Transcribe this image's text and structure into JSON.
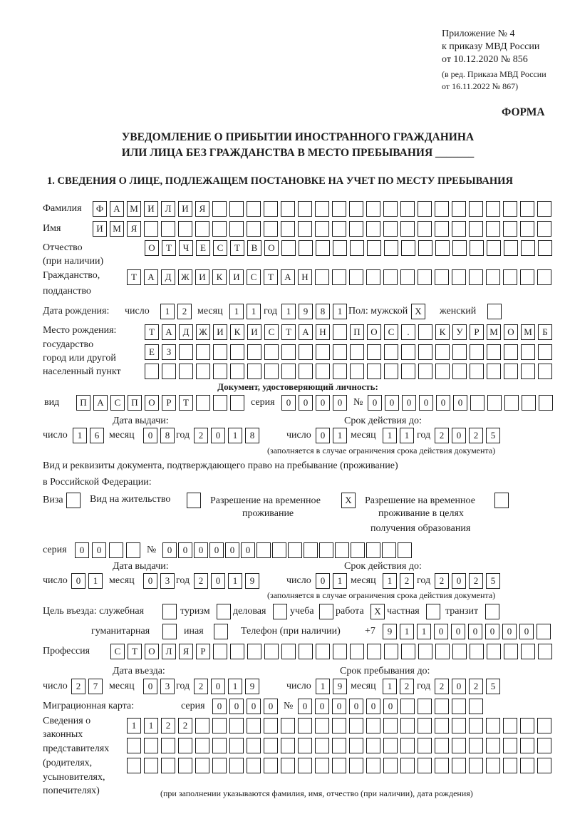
{
  "header": {
    "line1": "Приложение № 4",
    "line2": "к приказу МВД России",
    "line3": "от 10.12.2020 № 856",
    "line4": "(в ред. Приказа МВД России",
    "line5": "от 16.11.2022 № 867)",
    "form_label": "ФОРМА"
  },
  "title": {
    "line1": "УВЕДОМЛЕНИЕ О ПРИБЫТИИ ИНОСТРАННОГО ГРАЖДАНИНА",
    "line2": "ИЛИ ЛИЦА БЕЗ ГРАЖДАНСТВА В МЕСТО ПРЕБЫВАНИЯ _______"
  },
  "section1": {
    "heading": "1. СВЕДЕНИЯ О ЛИЦЕ, ПОДЛЕЖАЩЕМ ПОСТАНОВКЕ НА УЧЕТ ПО МЕСТУ ПРЕБЫВАНИЯ",
    "surname": {
      "label": "Фамилия",
      "value": "ФАМИЛИЯ"
    },
    "name": {
      "label": "Имя",
      "value": "ИМЯ"
    },
    "patronymic": {
      "label": "Отчество",
      "label2": "(при наличии)",
      "value": "ОТЧЕСТВО"
    },
    "citizenship": {
      "label": "Гражданство,",
      "label2": "подданство",
      "value": "ТАДЖИКИСТАН"
    },
    "birth_date": {
      "label": "Дата рождения:",
      "day_label": "число",
      "day": "12",
      "month_label": "месяц",
      "month": "11",
      "year_label": "год",
      "year": "1981"
    },
    "sex": {
      "label": "Пол: мужской",
      "male": "X",
      "female_label": "женский",
      "female": ""
    },
    "birth_place": {
      "label1": "Место рождения:",
      "label2": "государство",
      "label3": "город или другой",
      "label4": "населенный пункт",
      "row1": "ТАДЖИКИСТАН ПОС. КУРМОМБ",
      "row2": "ЕЗ",
      "row3": ""
    },
    "id_doc": {
      "heading": "Документ, удостоверяющий личность:",
      "kind_label": "вид",
      "kind": "ПАСПОРТ",
      "series_label": "серия",
      "series": "0000",
      "number_label": "№",
      "number": "000000",
      "issue_label": "Дата выдачи:",
      "valid_label": "Срок действия до:",
      "issue": {
        "day_label": "число",
        "day": "16",
        "month_label": "месяц",
        "month": "08",
        "year_label": "год",
        "year": "2018"
      },
      "valid": {
        "day_label": "число",
        "day": "01",
        "month_label": "месяц",
        "month": "11",
        "year_label": "год",
        "year": "2025"
      },
      "note": "(заполняется в случае ограничения срока действия документа)"
    },
    "stay_doc": {
      "heading1": "Вид и реквизиты документа, подтверждающего право на пребывание (проживание)",
      "heading2": "в Российской Федерации:",
      "visa_label": "Виза",
      "visa": "",
      "residence_label": "Вид на жительство",
      "residence": "",
      "temp_label1": "Разрешение на временное",
      "temp_label2": "проживание",
      "temp": "X",
      "edu_label1": "Разрешение на временное",
      "edu_label2": "проживание в целях",
      "edu_label3": "получения образования",
      "edu": "",
      "series_label": "серия",
      "series": "00",
      "number_label": "№",
      "number": "000000",
      "issue_label": "Дата выдачи:",
      "valid_label": "Срок действия до:",
      "issue": {
        "day_label": "число",
        "day": "01",
        "month_label": "месяц",
        "month": "03",
        "year_label": "год",
        "year": "2019"
      },
      "valid": {
        "day_label": "число",
        "day": "01",
        "month_label": "месяц",
        "month": "12",
        "year_label": "год",
        "year": "2025"
      },
      "note": "(заполняется в случае ограничения срока действия документа)"
    },
    "purpose": {
      "label": "Цель въезда: служебная",
      "official": "",
      "tourism_label": "туризм",
      "tourism": "",
      "business_label": "деловая",
      "business": "",
      "study_label": "учеба",
      "study": "",
      "work_label": "работа",
      "work": "X",
      "private_label": "частная",
      "private": "",
      "transit_label": "транзит",
      "transit": "",
      "humanitarian_label": "гуманитарная",
      "humanitarian": "",
      "other_label": "иная",
      "other": ""
    },
    "phone": {
      "label": "Телефон (при наличии)",
      "prefix": "+7",
      "value": "911000000"
    },
    "profession": {
      "label": "Профессия",
      "value": "СТОЛЯР"
    },
    "entry": {
      "entry_label": "Дата въезда:",
      "stay_label": "Срок пребывания до:",
      "entry_date": {
        "day_label": "число",
        "day": "27",
        "month_label": "месяц",
        "month": "03",
        "year_label": "год",
        "year": "2019"
      },
      "stay_until": {
        "day_label": "число",
        "day": "19",
        "month_label": "месяц",
        "month": "12",
        "year_label": "год",
        "year": "2025"
      }
    },
    "migration_card": {
      "label": "Миграционная карта:",
      "series_label": "серия",
      "series": "0000",
      "number_label": "№",
      "number": "000000"
    },
    "representatives": {
      "label1": "Сведения о",
      "label2": "законных",
      "label3": "представителях",
      "label4": "(родителях,",
      "label5": "усыновителях,",
      "label6": "попечителях)",
      "row1": "1122",
      "row2": "",
      "row3": "",
      "note": "(при заполнении указываются фамилия, имя, отчество (при наличии), дата рождения)"
    }
  }
}
